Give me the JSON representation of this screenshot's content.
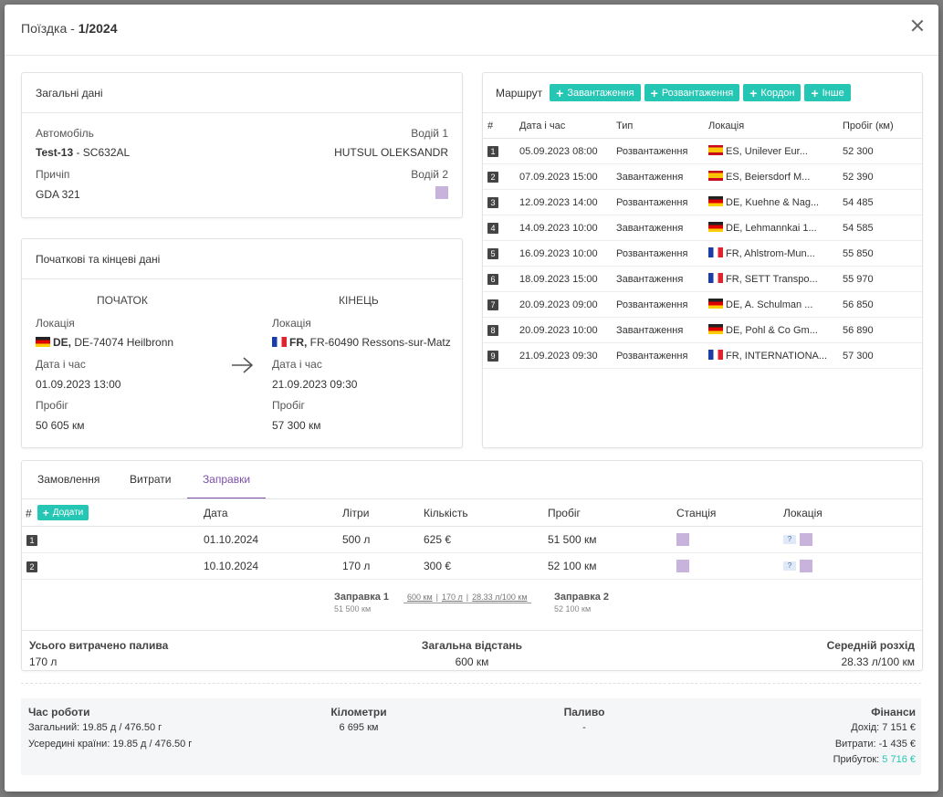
{
  "modal": {
    "title_prefix": "Поїздка - ",
    "title_number": "1/2024"
  },
  "general": {
    "title": "Загальні дані",
    "car_label": "Автомобіль",
    "car_name": "Test-13",
    "car_plate": " - SC632AL",
    "driver1_label": "Водій 1",
    "driver1_value": "HUTSUL OLEKSANDR",
    "trailer_label": "Причіп",
    "trailer_value": "GDA 321",
    "driver2_label": "Водій 2"
  },
  "startend": {
    "title": "Початкові та кінцеві дані",
    "start": {
      "heading": "ПОЧАТОК",
      "loc_label": "Локація",
      "country": "DE,",
      "address": " DE-74074 Heilbronn",
      "dt_label": "Дата і час",
      "dt": "01.09.2023 13:00",
      "km_label": "Пробіг",
      "km": "50 605 км"
    },
    "end": {
      "heading": "КІНЕЦЬ",
      "loc_label": "Локація",
      "country": "FR,",
      "address": " FR-60490 Ressons-sur-Matz",
      "dt_label": "Дата і час",
      "dt": "21.09.2023 09:30",
      "km_label": "Пробіг",
      "km": "57 300 км"
    }
  },
  "route": {
    "title": "Маршрут",
    "buttons": [
      "Завантаження",
      "Розвантаження",
      "Кордон",
      "Інше"
    ],
    "headers": [
      "#",
      "Дата і час",
      "Тип",
      "Локація",
      "Пробіг (км)"
    ],
    "rows": [
      {
        "n": "1",
        "dt": "05.09.2023 08:00",
        "type": "Розвантаження",
        "flag": "es",
        "loc": "ES, Unilever Eur...",
        "km": "52 300"
      },
      {
        "n": "2",
        "dt": "07.09.2023 15:00",
        "type": "Завантаження",
        "flag": "es",
        "loc": "ES, Beiersdorf M...",
        "km": "52 390"
      },
      {
        "n": "3",
        "dt": "12.09.2023 14:00",
        "type": "Розвантаження",
        "flag": "de",
        "loc": "DE, Kuehne & Nag...",
        "km": "54 485"
      },
      {
        "n": "4",
        "dt": "14.09.2023 10:00",
        "type": "Завантаження",
        "flag": "de",
        "loc": "DE, Lehmannkai 1...",
        "km": "54 585"
      },
      {
        "n": "5",
        "dt": "16.09.2023 10:00",
        "type": "Розвантаження",
        "flag": "fr",
        "loc": "FR, Ahlstrom-Mun...",
        "km": "55 850"
      },
      {
        "n": "6",
        "dt": "18.09.2023 15:00",
        "type": "Завантаження",
        "flag": "fr",
        "loc": "FR, SETT Transpo...",
        "km": "55 970"
      },
      {
        "n": "7",
        "dt": "20.09.2023 09:00",
        "type": "Розвантаження",
        "flag": "de",
        "loc": "DE, A. Schulman ...",
        "km": "56 850"
      },
      {
        "n": "8",
        "dt": "20.09.2023 10:00",
        "type": "Завантаження",
        "flag": "de",
        "loc": "DE, Pohl & Co Gm...",
        "km": "56 890"
      },
      {
        "n": "9",
        "dt": "21.09.2023 09:30",
        "type": "Розвантаження",
        "flag": "fr",
        "loc": "FR, INTERNATIONA...",
        "km": "57 300"
      }
    ]
  },
  "tabs": [
    "Замовлення",
    "Витрати",
    "Заправки"
  ],
  "fuel": {
    "add_label": "Додати",
    "headers": [
      "#",
      "Дата",
      "Літри",
      "Кількість",
      "Пробіг",
      "Станція",
      "Локація"
    ],
    "rows": [
      {
        "n": "1",
        "date": "01.10.2024",
        "liters": "500 л",
        "amount": "625 €",
        "km": "51 500 км"
      },
      {
        "n": "2",
        "date": "10.10.2024",
        "liters": "170 л",
        "amount": "300 €",
        "km": "52 100 км"
      }
    ],
    "q_mark": "?",
    "seg": {
      "from_title": "Заправка 1",
      "from_km": "51 500 км",
      "mid1": "600 км",
      "mid2": "170 л",
      "mid3": "28.33 л/100 км",
      "to_title": "Заправка 2",
      "to_km": "52 100 км"
    },
    "total_fuel_label": "Усього витрачено палива",
    "total_fuel": "170 л",
    "total_dist_label": "Загальна відстань",
    "total_dist": "600 км",
    "avg_label": "Середній розхід",
    "avg": "28.33 л/100 км"
  },
  "summary": {
    "work_title": "Час роботи",
    "work_total": "Загальний: 19.85 д / 476.50 г",
    "work_domestic": "Усередині країни: 19.85 д / 476.50 г",
    "km_title": "Кілометри",
    "km_value": "6 695 км",
    "fuel_title": "Паливо",
    "fuel_value": "-",
    "fin_title": "Фінанси",
    "income": "Дохід: 7 151 €",
    "expenses": "Витрати: -1 435 €",
    "profit_label": "Прибуток: ",
    "profit_value": "5 716 €",
    "profit_color": "#26c6b4"
  }
}
